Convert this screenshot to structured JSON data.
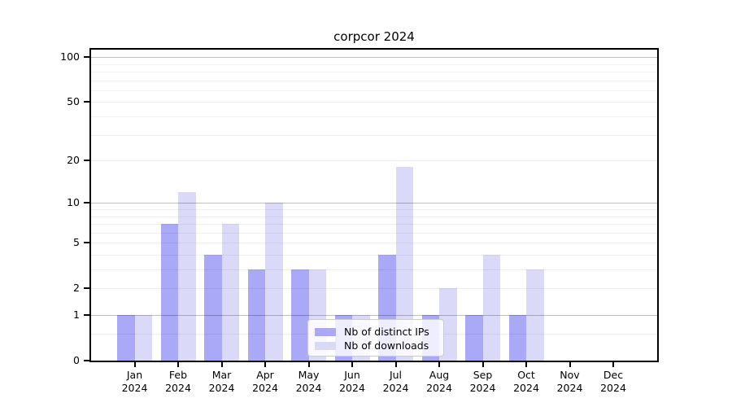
{
  "figure": {
    "title": "corpcor 2024"
  },
  "chart_data": {
    "type": "bar",
    "title": "corpcor 2024",
    "categories": [
      "Jan",
      "Feb",
      "Mar",
      "Apr",
      "May",
      "Jun",
      "Jul",
      "Aug",
      "Sep",
      "Oct",
      "Nov",
      "Dec"
    ],
    "x_tick_year": "2024",
    "series": [
      {
        "name": "Nb of distinct IPs",
        "color": "#a9a9f8",
        "values": [
          1,
          7,
          4,
          3,
          3,
          1,
          4,
          1,
          1,
          1,
          0,
          0
        ]
      },
      {
        "name": "Nb of downloads",
        "color": "#dadaf8",
        "values": [
          1,
          12,
          7,
          10,
          3,
          1,
          18,
          2,
          4,
          3,
          0,
          0
        ]
      }
    ],
    "xlabel": "",
    "ylabel": "",
    "y_scale": "log1p",
    "ylim": [
      0,
      112
    ],
    "y_ticks": [
      0,
      1,
      2,
      5,
      10,
      20,
      50,
      100
    ],
    "y_gridlines_major": [
      1,
      10,
      100
    ],
    "y_gridlines_minor": [
      0.5,
      2,
      3,
      4,
      5,
      6,
      7,
      8,
      9,
      20,
      30,
      40,
      50,
      60,
      70,
      80,
      90
    ],
    "grid": true,
    "legend_position": "lower center"
  },
  "colors": {
    "spine": "#000000",
    "major_grid": "rgba(0,0,0,0.25)",
    "minor_grid": "rgba(0,0,0,0.06)",
    "legend_border": "#cccccc"
  }
}
